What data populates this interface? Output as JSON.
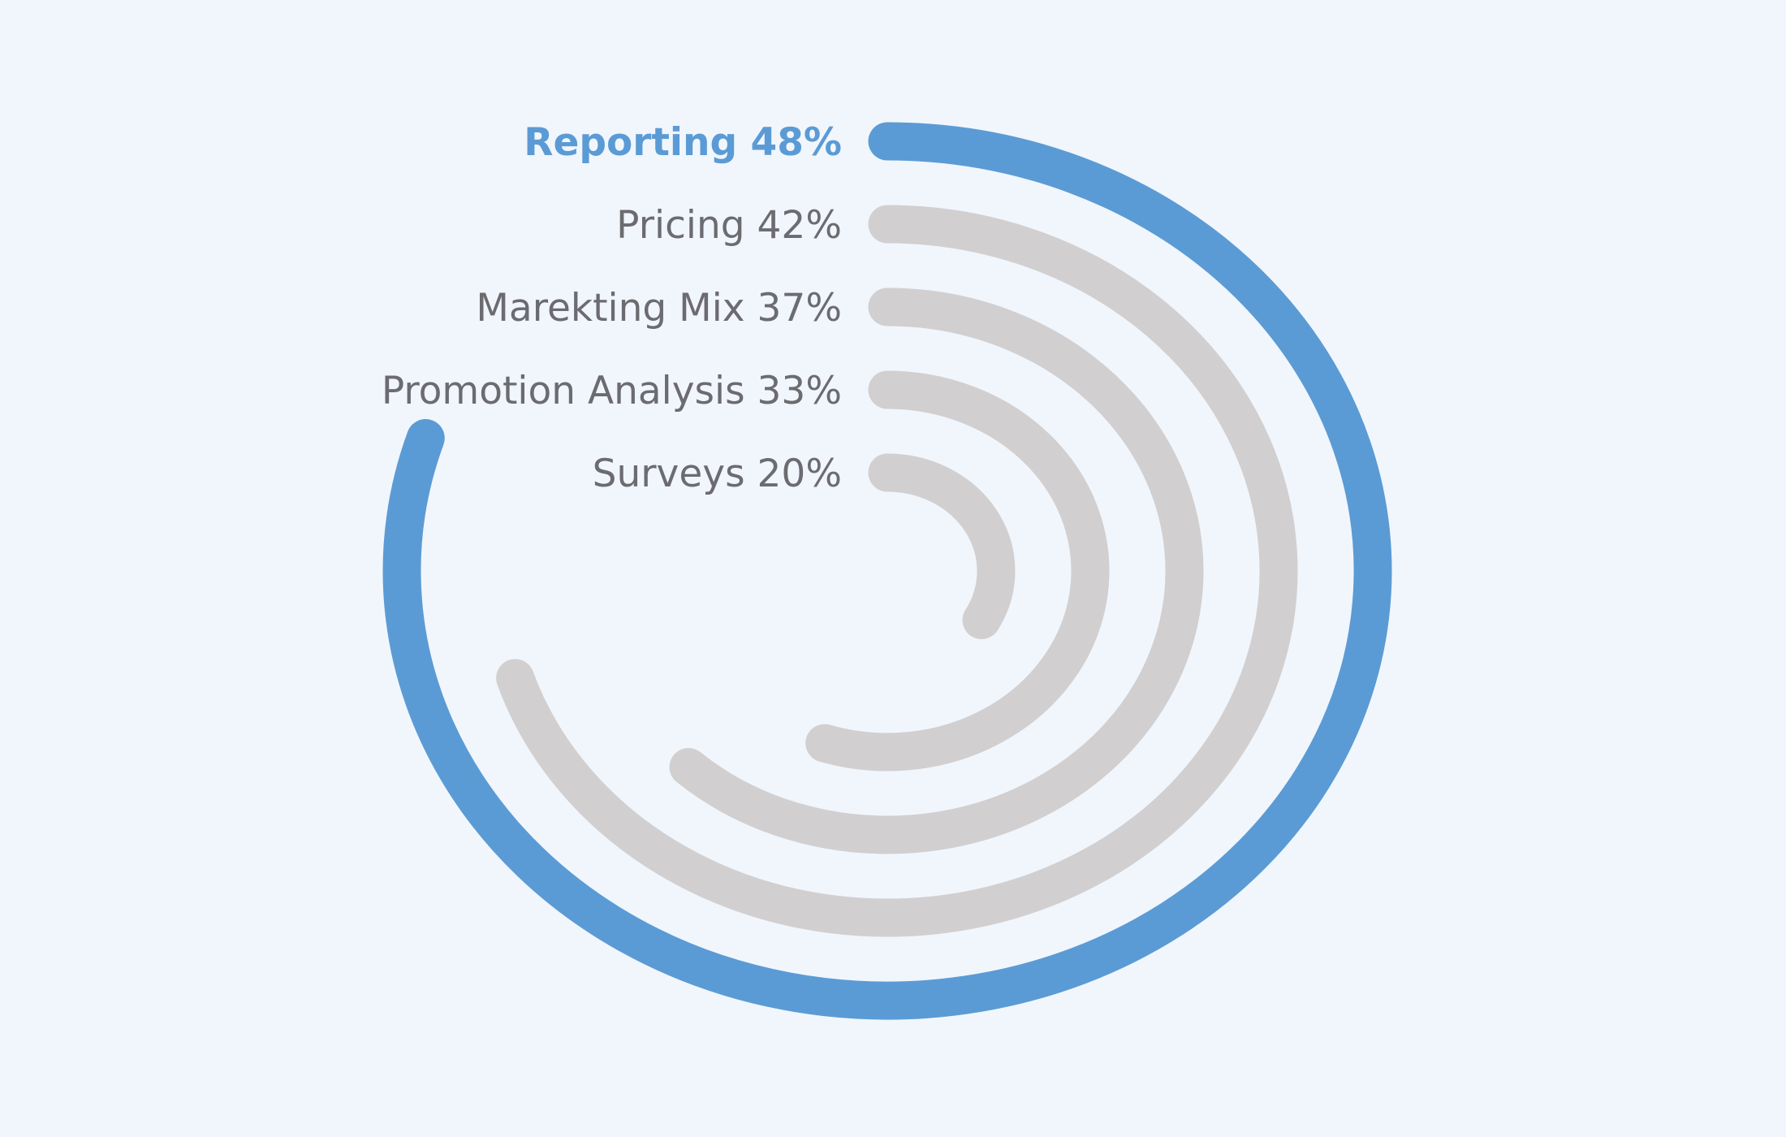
{
  "chart_data": {
    "type": "radial-bar",
    "unit": "%",
    "max_value": 60,
    "highlight_index": 0,
    "colors": {
      "highlight": "#5b9bd5",
      "track": "#d1cfd0",
      "label": "#6b6b70",
      "background": "#f1f6fc"
    },
    "categories": [
      "Reporting",
      "Pricing",
      "Marekting Mix",
      "Promotion Analysis",
      "Surveys"
    ],
    "values": [
      48,
      42,
      37,
      33,
      20
    ],
    "labels": [
      "Reporting 48%",
      "Pricing 42%",
      "Marekting Mix 37%",
      "Promotion Analysis 33%",
      "Surveys 20%"
    ]
  }
}
